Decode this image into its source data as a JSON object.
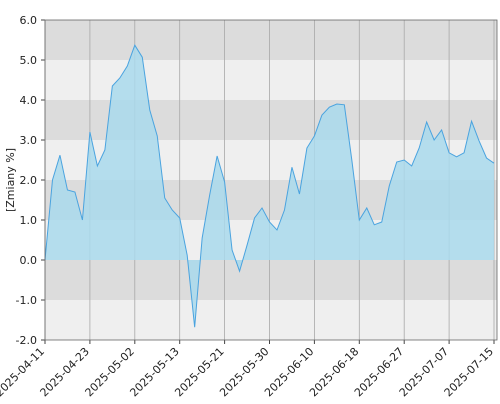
{
  "chart_data": {
    "type": "area",
    "y_label": "[Zmiany %]",
    "categories": [
      "2025-04-11",
      null,
      null,
      null,
      null,
      null,
      "2025-04-23",
      null,
      null,
      null,
      null,
      null,
      "2025-05-02",
      null,
      null,
      null,
      null,
      null,
      "2025-05-13",
      null,
      null,
      null,
      null,
      null,
      "2025-05-21",
      null,
      null,
      null,
      null,
      null,
      "2025-05-30",
      null,
      null,
      null,
      null,
      null,
      "2025-06-10",
      null,
      null,
      null,
      null,
      null,
      "2025-06-18",
      null,
      null,
      null,
      null,
      null,
      "2025-06-27",
      null,
      null,
      null,
      null,
      null,
      "2025-07-07",
      null,
      null,
      null,
      null,
      null,
      "2025-07-15"
    ],
    "values": [
      0,
      2.0,
      2.62,
      1.75,
      1.7,
      1.0,
      3.2,
      2.35,
      2.75,
      4.35,
      4.55,
      4.85,
      5.37,
      5.07,
      3.75,
      3.1,
      1.55,
      1.25,
      1.05,
      0.12,
      -1.68,
      0.55,
      1.62,
      2.6,
      1.95,
      0.25,
      -0.28,
      0.37,
      1.05,
      1.3,
      0.95,
      0.75,
      1.25,
      2.32,
      1.65,
      2.8,
      3.1,
      3.62,
      3.82,
      3.9,
      3.88,
      2.5,
      1.0,
      1.3,
      0.88,
      0.95,
      1.85,
      2.45,
      2.5,
      2.35,
      2.8,
      3.45,
      3.0,
      3.25,
      2.68,
      2.58,
      2.68,
      3.47,
      2.98,
      2.55,
      2.42
    ],
    "color": "#4aa3df",
    "fill_color": "#a9d9ec",
    "ylim": [
      -2,
      6
    ],
    "yticks": [
      {
        "value": -2,
        "label": "-2.0"
      },
      {
        "value": -1,
        "label": "-1.0"
      },
      {
        "value": 0,
        "label": "0.0"
      },
      {
        "value": 1,
        "label": "1.0"
      },
      {
        "value": 2,
        "label": "2.0"
      },
      {
        "value": 3,
        "label": "3.0"
      },
      {
        "value": 4,
        "label": "4.0"
      },
      {
        "value": 5,
        "label": "5.0"
      },
      {
        "value": 6,
        "label": "6.0"
      }
    ],
    "grid": true
  }
}
